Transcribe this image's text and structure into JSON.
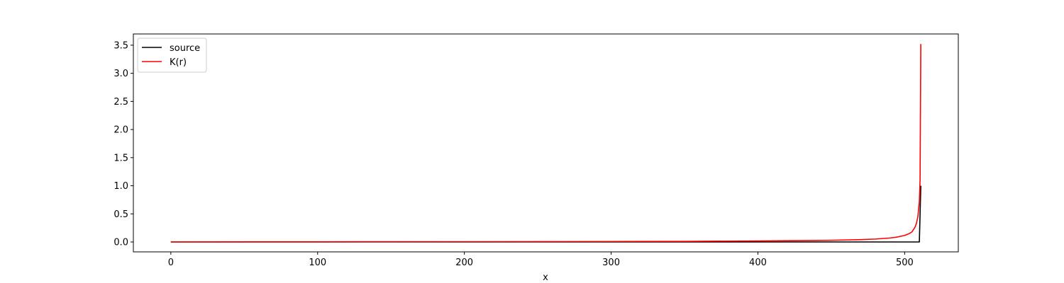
{
  "chart_data": {
    "type": "line",
    "title": "",
    "xlabel": "x",
    "ylabel": "",
    "xlim": [
      -25.55,
      536.55
    ],
    "ylim": [
      -0.176,
      3.7
    ],
    "xticks": [
      0,
      100,
      200,
      300,
      400,
      500
    ],
    "xtick_labels": [
      "0",
      "100",
      "200",
      "300",
      "400",
      "500"
    ],
    "yticks": [
      0.0,
      0.5,
      1.0,
      1.5,
      2.0,
      2.5,
      3.0,
      3.5
    ],
    "ytick_labels": [
      "0.0",
      "0.5",
      "1.0",
      "1.5",
      "2.0",
      "2.5",
      "3.0",
      "3.5"
    ],
    "grid": false,
    "legend_position": "top-left",
    "series": [
      {
        "name": "source",
        "color": "#000000",
        "x": [
          0,
          100,
          200,
          300,
          400,
          500,
          510,
          511
        ],
        "y": [
          0,
          0,
          0,
          0,
          0,
          0,
          0,
          1.0
        ]
      },
      {
        "name": "K(r)",
        "color": "#ff0000",
        "x": [
          0,
          50,
          100,
          150,
          200,
          250,
          300,
          350,
          400,
          430,
          450,
          470,
          480,
          490,
          495,
          500,
          503,
          505,
          507,
          508,
          509,
          510,
          510.5,
          511
        ],
        "y": [
          0.0,
          0.002,
          0.003,
          0.004,
          0.005,
          0.006,
          0.008,
          0.011,
          0.018,
          0.024,
          0.03,
          0.042,
          0.052,
          0.071,
          0.088,
          0.117,
          0.148,
          0.18,
          0.26,
          0.33,
          0.45,
          0.72,
          1.1,
          3.52
        ]
      }
    ]
  }
}
